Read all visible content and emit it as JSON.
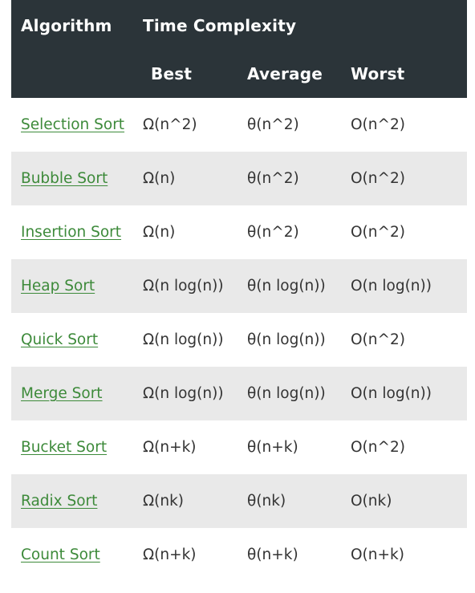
{
  "header": {
    "algorithm": "Algorithm",
    "time_complexity": "Time Complexity",
    "best": "Best",
    "average": "Average",
    "worst": "Worst"
  },
  "colors": {
    "header_bg": "#2b3439",
    "link": "#3d8a3a",
    "alt_row": "#e9e9e9"
  },
  "rows": [
    {
      "name": "Selection Sort",
      "best": "Ω(n^2)",
      "average": "θ(n^2)",
      "worst": "O(n^2)"
    },
    {
      "name": "Bubble Sort",
      "best": "Ω(n)",
      "average": "θ(n^2)",
      "worst": "O(n^2)"
    },
    {
      "name": "Insertion Sort",
      "best": "Ω(n)",
      "average": "θ(n^2)",
      "worst": "O(n^2)"
    },
    {
      "name": "Heap Sort",
      "best": "Ω(n log(n))",
      "average": "θ(n log(n))",
      "worst": "O(n log(n))"
    },
    {
      "name": "Quick Sort",
      "best": "Ω(n log(n))",
      "average": "θ(n log(n))",
      "worst": "O(n^2)"
    },
    {
      "name": "Merge Sort",
      "best": "Ω(n log(n))",
      "average": "θ(n log(n))",
      "worst": "O(n log(n))"
    },
    {
      "name": "Bucket Sort",
      "best": "Ω(n+k)",
      "average": "θ(n+k)",
      "worst": "O(n^2)"
    },
    {
      "name": "Radix Sort",
      "best": "Ω(nk)",
      "average": "θ(nk)",
      "worst": "O(nk)"
    },
    {
      "name": "Count Sort",
      "best": "Ω(n+k)",
      "average": "θ(n+k)",
      "worst": "O(n+k)"
    }
  ]
}
